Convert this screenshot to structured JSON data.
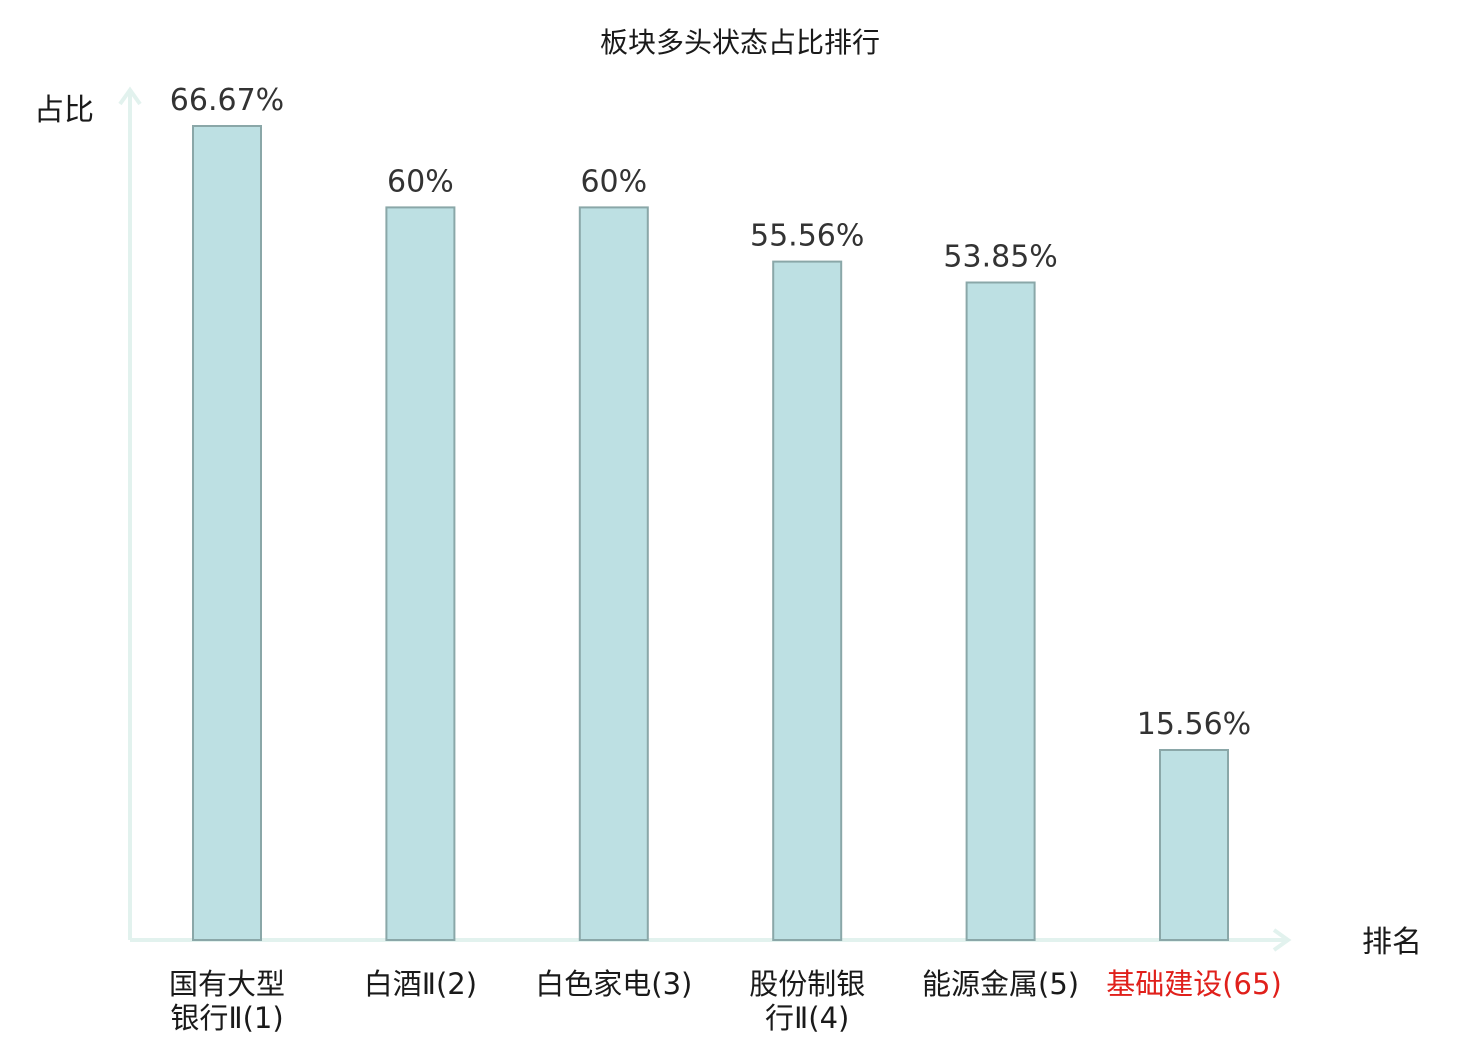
{
  "chart_data": {
    "type": "bar",
    "title": "板块多头状态占比排行",
    "ylabel": "占比",
    "xlabel": "排名",
    "ylim": [
      0,
      70
    ],
    "grid": false,
    "categories": [
      {
        "lines": [
          "国有大型",
          "银行Ⅱ(1)"
        ],
        "highlight": false
      },
      {
        "lines": [
          "白酒Ⅱ(2)"
        ],
        "highlight": false
      },
      {
        "lines": [
          "白色家电(3)"
        ],
        "highlight": false
      },
      {
        "lines": [
          "股份制银",
          "行Ⅱ(4)"
        ],
        "highlight": false
      },
      {
        "lines": [
          "能源金属(5)"
        ],
        "highlight": false
      },
      {
        "lines": [
          "基础建设(65)"
        ],
        "highlight": true
      }
    ],
    "values": [
      66.67,
      60,
      60,
      55.56,
      53.85,
      15.56
    ],
    "value_labels": [
      "66.67%",
      "60%",
      "60%",
      "55.56%",
      "53.85%",
      "15.56%"
    ],
    "colors": {
      "bar_fill": "#bde0e3",
      "bar_stroke": "#8aa7a8",
      "axis": "#e2f2ee",
      "highlight_text": "#e0201b"
    }
  }
}
